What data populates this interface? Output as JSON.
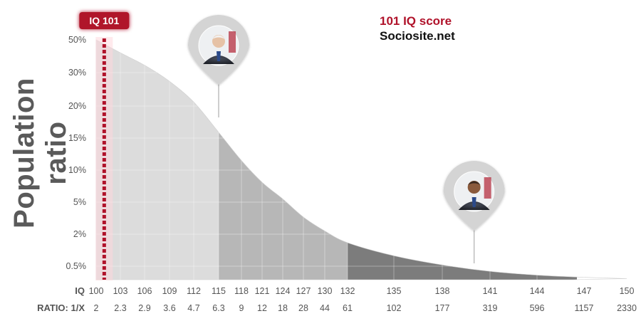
{
  "chart_data": {
    "type": "area",
    "title": "101 IQ score",
    "subtitle": "Sociosite.net",
    "ylabel": "Population ratio",
    "y_ticks": [
      "50%",
      "30%",
      "20%",
      "15%",
      "10%",
      "5%",
      "2%",
      "0.5%"
    ],
    "x_row_label": "IQ",
    "ratio_row_label": "RATIO: 1/X",
    "x": [
      100,
      103,
      106,
      109,
      112,
      115,
      118,
      121,
      124,
      127,
      130,
      132,
      135,
      138,
      141,
      144,
      147,
      150
    ],
    "ratio": [
      "2",
      "2.3",
      "2.9",
      "3.6",
      "4.7",
      "6.3",
      "9",
      "12",
      "18",
      "28",
      "44",
      "61",
      "102",
      "177",
      "319",
      "596",
      "1157",
      "2330"
    ],
    "y_percent_above": [
      50,
      42.1,
      34.5,
      27.4,
      21.2,
      15.9,
      11.5,
      8.1,
      5.5,
      3.6,
      2.3,
      1.6,
      0.99,
      0.56,
      0.31,
      0.17,
      0.09,
      0.04
    ],
    "shaded_bands": [
      {
        "from": 100,
        "to": 115,
        "shade": "light"
      },
      {
        "from": 115,
        "to": 132,
        "shade": "medium"
      },
      {
        "from": 132,
        "to": 150,
        "shade": "dark"
      }
    ],
    "marker": {
      "label": "IQ 101",
      "x": 101,
      "color": "#b0122a"
    },
    "pins": [
      {
        "name": "portrait-1",
        "x": 115
      },
      {
        "name": "portrait-2",
        "x": 140
      }
    ],
    "grid": true,
    "legend": "none"
  },
  "colors": {
    "accent": "#b0122a",
    "band_light": "#dcdcdc",
    "band_medium": "#b7b7b7",
    "band_dark": "#7c7c7c",
    "axis_text": "#555555"
  }
}
